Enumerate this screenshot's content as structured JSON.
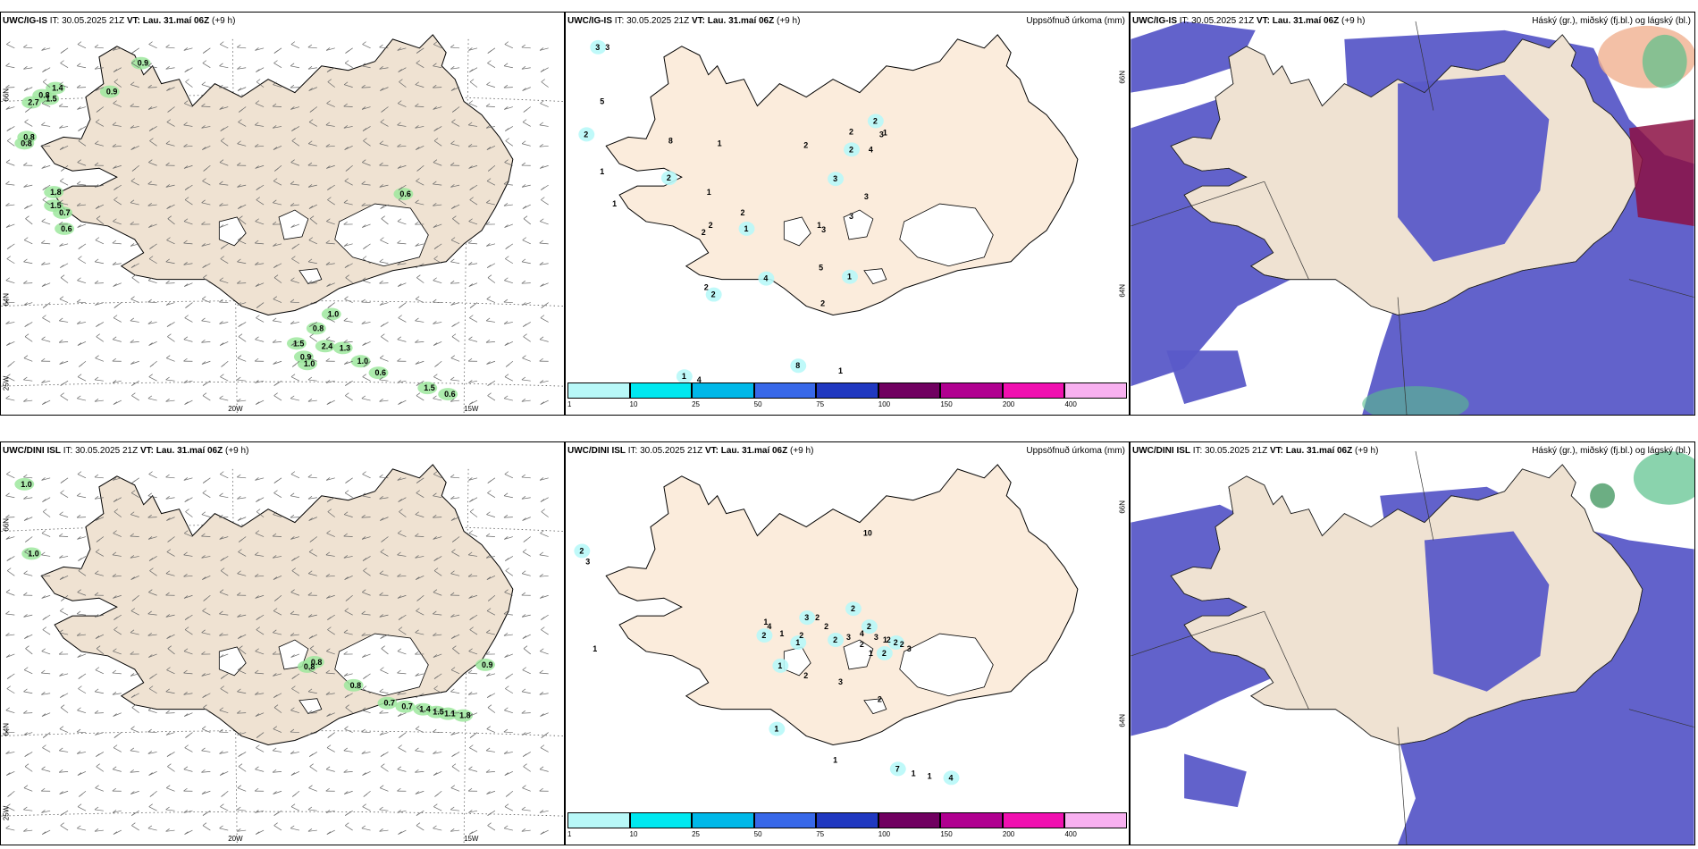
{
  "panels": [
    {
      "id": "top-left",
      "model": "UWC/IG-IS",
      "it": "IT: 30.05.2025 21Z",
      "vt_label": "VT:",
      "vt": "Lau. 31.maí 06Z",
      "lead": "(+9 h)",
      "lon_labels": [
        "20W",
        "15W"
      ],
      "lat_labels": [
        "66N",
        "64N",
        "25W"
      ],
      "values": [
        "0.9",
        "1.4",
        "0.8",
        "1.5",
        "2.7",
        "0.9",
        "0.8",
        "0.8",
        "1.8",
        "1.5",
        "0.7",
        "0.6",
        "0.6",
        "1.0",
        "0.8",
        "1.5",
        "2.4",
        "1.3",
        "0.9",
        "1.0",
        "1.0",
        "0.6",
        "1.5",
        "0.6"
      ]
    },
    {
      "id": "top-middle",
      "model": "UWC/IG-IS",
      "it": "IT: 30.05.2025 21Z",
      "vt_label": "VT:",
      "vt": "Lau. 31.maí 06Z",
      "lead": "(+9 h)",
      "right_title": "Uppsöfnuð úrkoma (mm)",
      "lat_labels": [
        "66N",
        "64N"
      ],
      "values": [
        "3",
        "3",
        "5",
        "2",
        "1",
        "1",
        "1",
        "8",
        "2",
        "2",
        "1",
        "2",
        "2",
        "2",
        "1",
        "1",
        "4",
        "2",
        "4",
        "1",
        "3",
        "3",
        "3",
        "3",
        "1",
        "5",
        "2",
        "8",
        "1",
        "2",
        "2",
        "4",
        "3",
        "2",
        "1",
        "2"
      ]
    },
    {
      "id": "top-right",
      "model": "UWC/IG-IS",
      "it": "IT: 30.05.2025 21Z",
      "vt_label": "VT:",
      "vt": "Lau. 31.maí 06Z",
      "lead": "(+9 h)",
      "right_title": "Háský (gr.), miðský (fj.bl.) og lágský (bl.)"
    },
    {
      "id": "bottom-left",
      "model": "UWC/DINI ISL",
      "it": "IT: 30.05.2025 21Z",
      "vt_label": "VT:",
      "vt": "Lau. 31.maí 06Z",
      "lead": "(+9 h)",
      "lon_labels": [
        "20W",
        "15W"
      ],
      "lat_labels": [
        "66N",
        "64N",
        "25W"
      ],
      "values": [
        "1.0",
        "1.0",
        "0.8",
        "0.8",
        "0.8",
        "0.9",
        "0.7",
        "0.7",
        "1.4",
        "1.5",
        "1.1",
        "1.8"
      ]
    },
    {
      "id": "bottom-middle",
      "model": "UWC/DINI ISL",
      "it": "IT: 30.05.2025 21Z",
      "vt_label": "VT:",
      "vt": "Lau. 31.maí 06Z",
      "lead": "(+9 h)",
      "right_title": "Uppsöfnuð úrkoma (mm)",
      "lat_labels": [
        "66N",
        "64N"
      ],
      "values": [
        "2",
        "3",
        "1",
        "2",
        "1",
        "1",
        "1",
        "2",
        "4",
        "3",
        "2",
        "2",
        "2",
        "3",
        "4",
        "2",
        "3",
        "1",
        "2",
        "2",
        "3",
        "1",
        "3",
        "2",
        "1",
        "2",
        "1",
        "7",
        "1",
        "1",
        "4",
        "10",
        "2",
        "2",
        "2",
        "1",
        "2"
      ]
    },
    {
      "id": "bottom-right",
      "model": "UWC/DINI ISL",
      "it": "IT: 30.05.2025 21Z",
      "vt_label": "VT:",
      "vt": "Lau. 31.maí 06Z",
      "lead": "(+9 h)",
      "right_title": "Háský (gr.), miðský (fj.bl.) og lágský (bl.)"
    }
  ],
  "colorbar": {
    "ticks": [
      "1",
      "10",
      "25",
      "50",
      "75",
      "100",
      "150",
      "200",
      "400"
    ],
    "colors": [
      "#b8f8f8",
      "#00e8f0",
      "#00b8e8",
      "#3868e8",
      "#2038c0",
      "#700060",
      "#b00090",
      "#f010b0",
      "#f8b0f0"
    ]
  },
  "colors": {
    "land": "#efe2d2",
    "land_precip": "#fbecdc",
    "low_cloud": "#5a5ac8",
    "precip_green": "#9ee89e",
    "precip_dark": "#1e6e2e"
  }
}
